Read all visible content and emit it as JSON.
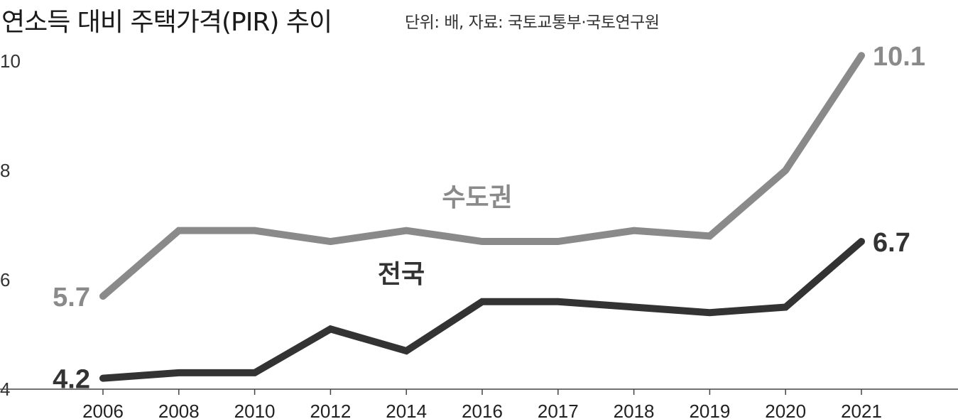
{
  "header": {
    "title": "연소득 대비 주택가격(PIR) 추이",
    "subtitle": "단위: 배, 자료: 국토교통부·국토연구원"
  },
  "colors": {
    "capital": "#8a8a8a",
    "national": "#333333",
    "axis": "#444444"
  },
  "chart_data": {
    "type": "line",
    "title": "연소득 대비 주택가격(PIR) 추이",
    "unit": "배",
    "categories": [
      "2006",
      "2008",
      "2010",
      "2012",
      "2014",
      "2016",
      "2017",
      "2018",
      "2019",
      "2020",
      "2021"
    ],
    "ylim": [
      4,
      10.7
    ],
    "yticks": [
      "4",
      "6",
      "8",
      "10"
    ],
    "grid": false,
    "series": [
      {
        "name": "수도권",
        "values": [
          5.7,
          6.9,
          6.9,
          6.7,
          6.9,
          6.7,
          6.7,
          6.9,
          6.8,
          8.0,
          10.1
        ],
        "start_label": "5.7",
        "end_label": "10.1"
      },
      {
        "name": "전국",
        "values": [
          4.2,
          4.3,
          4.3,
          5.1,
          4.7,
          5.6,
          5.6,
          5.5,
          5.4,
          5.5,
          6.7
        ],
        "start_label": "4.2",
        "end_label": "6.7"
      }
    ]
  }
}
